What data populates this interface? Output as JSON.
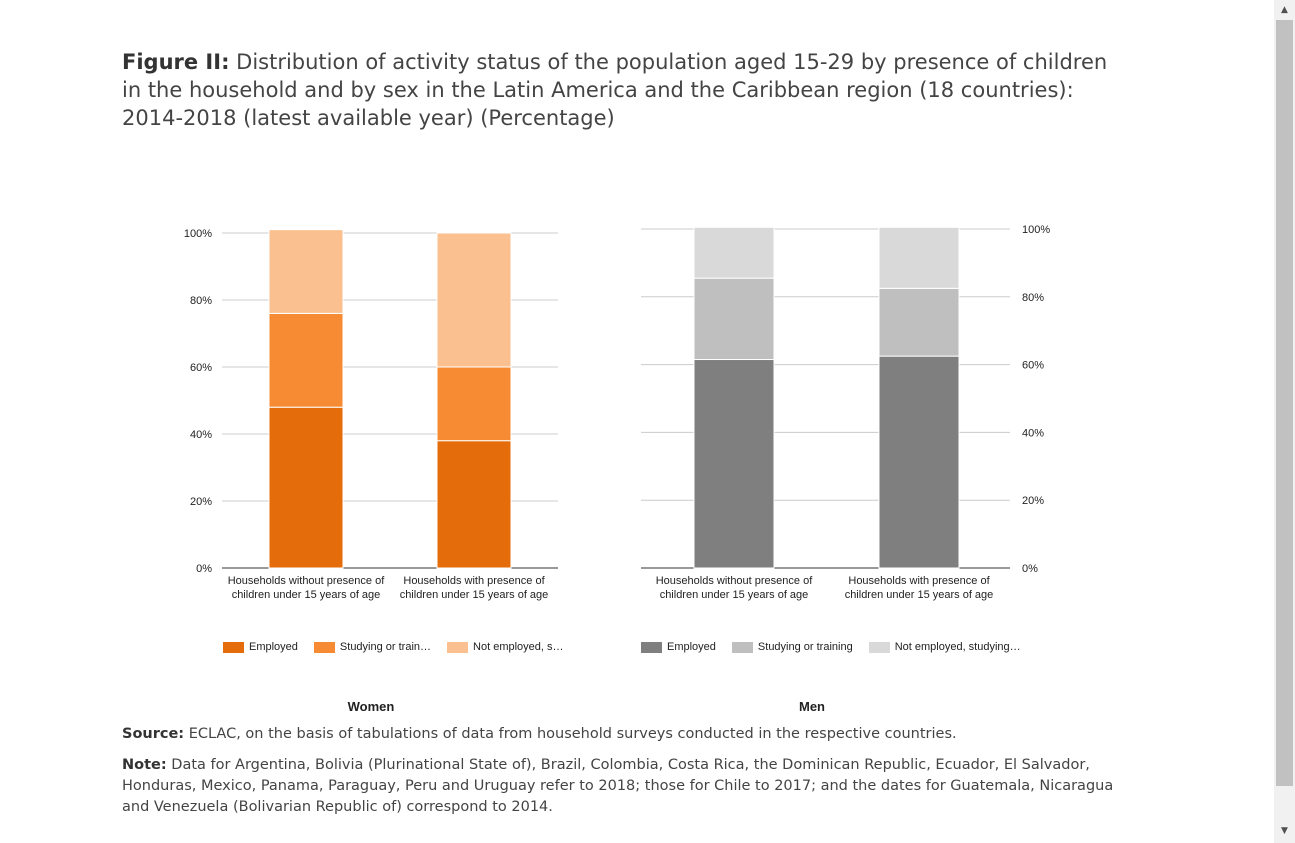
{
  "title": {
    "prefix": "Figure II:",
    "text": " Distribution of activity status of the population aged 15-29 by presence of children in the household and by sex in the Latin America and the Caribbean region (18 countries): 2014-2018 (latest available year) (Percentage)"
  },
  "chart_data": [
    {
      "type": "bar",
      "stacked": true,
      "name": "Women",
      "categories": [
        [
          "Households without presence of",
          "children under 15 years of age"
        ],
        [
          "Households with presence of",
          "children under 15 years of age"
        ]
      ],
      "series": [
        {
          "name": "Employed",
          "legend": "Employed",
          "color": "#e46c0a",
          "values": [
            48,
            38
          ]
        },
        {
          "name": "Studying or training",
          "legend": "Studying or train…",
          "color": "#f68b33",
          "values": [
            28,
            22
          ]
        },
        {
          "name": "Not employed, studying or training",
          "legend": "Not employed, s…",
          "color": "#fac090",
          "values": [
            25,
            40
          ]
        }
      ],
      "yticks": [
        "0%",
        "20%",
        "40%",
        "60%",
        "80%",
        "100%"
      ],
      "ylim": [
        0,
        100
      ],
      "axis_side": "left",
      "legend_position": "bottom"
    },
    {
      "type": "bar",
      "stacked": true,
      "name": "Men",
      "categories": [
        [
          "Households without presence of",
          "children under 15 years of age"
        ],
        [
          "Households with presence of",
          "children under 15 years of age"
        ]
      ],
      "series": [
        {
          "name": "Employed",
          "legend": "Employed",
          "color": "#7f7f7f",
          "values": [
            61.5,
            62.5
          ]
        },
        {
          "name": "Studying or training",
          "legend": "Studying or training",
          "color": "#bfbfbf",
          "values": [
            24,
            20
          ]
        },
        {
          "name": "Not employed, studying or training",
          "legend": "Not employed, studying…",
          "color": "#d9d9d9",
          "values": [
            15,
            18
          ]
        }
      ],
      "yticks": [
        "0%",
        "20%",
        "40%",
        "60%",
        "80%",
        "100%"
      ],
      "ylim": [
        0,
        100
      ],
      "axis_side": "right",
      "legend_position": "bottom"
    }
  ],
  "labels": {
    "women": "Women",
    "men": "Men"
  },
  "source": {
    "prefix": "Source:",
    "text": " ECLAC, on the basis of tabulations of data from household surveys conducted in the respective countries."
  },
  "note": {
    "prefix": "Note:",
    "text": " Data for Argentina, Bolivia (Plurinational State of), Brazil, Colombia, Costa Rica, the Dominican Republic, Ecuador, El Salvador, Honduras, Mexico, Panama, Paraguay, Peru and Uruguay refer to 2018; those for Chile to 2017; and the dates for Guatemala, Nicaragua and Venezuela (Bolivarian Republic of) correspond to 2014."
  },
  "scrollbar": {
    "up_icon": "triangle-up-icon",
    "down_icon": "triangle-down-icon"
  }
}
